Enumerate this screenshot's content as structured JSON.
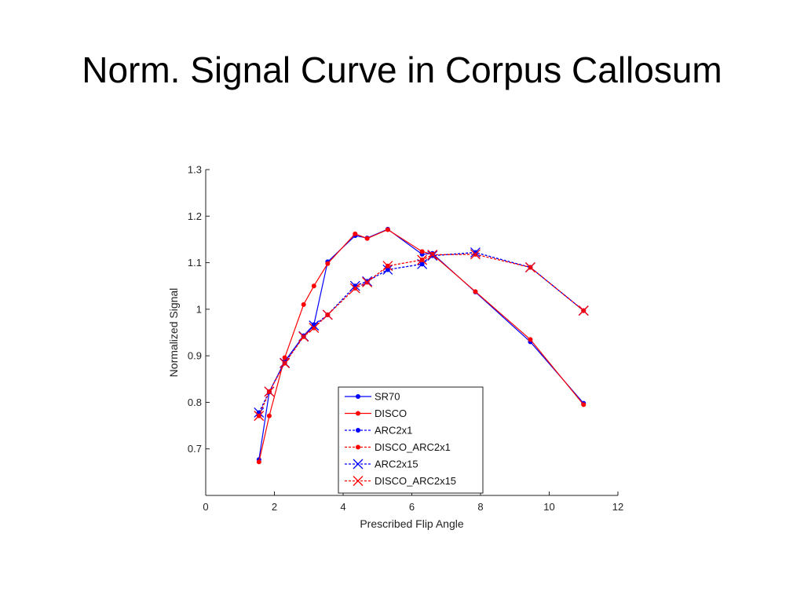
{
  "slide": {
    "title": "Norm. Signal Curve in Corpus Callosum"
  },
  "chart_data": {
    "type": "line",
    "title": "",
    "xlabel": "Prescribed Flip Angle",
    "ylabel": "Normalized Signal",
    "xlim": [
      0,
      12
    ],
    "ylim": [
      0.6,
      1.3
    ],
    "xticks": [
      0,
      2,
      4,
      6,
      8,
      10,
      12
    ],
    "yticks": [
      0.7,
      0.8,
      0.9,
      1,
      1.1,
      1.2,
      1.3
    ],
    "grid": false,
    "legend_position": "bottom-center",
    "series": [
      {
        "name": "SR70",
        "color": "#0000ff",
        "linestyle": "solid",
        "marker": "dot",
        "x": [
          1.55,
          1.85,
          2.3,
          2.85,
          3.15,
          3.55,
          4.35,
          4.7,
          5.3,
          6.3,
          6.6,
          7.85,
          9.45,
          11.0
        ],
        "y": [
          0.677,
          0.822,
          0.888,
          0.943,
          0.967,
          1.102,
          1.158,
          1.153,
          1.172,
          1.118,
          1.12,
          1.037,
          0.93,
          0.798
        ]
      },
      {
        "name": "DISCO",
        "color": "#ff0000",
        "linestyle": "solid",
        "marker": "dot",
        "x": [
          1.55,
          1.85,
          2.3,
          2.85,
          3.15,
          3.55,
          4.35,
          4.7,
          5.3,
          6.3,
          6.6,
          7.85,
          9.45,
          11.0
        ],
        "y": [
          0.672,
          0.771,
          0.896,
          1.01,
          1.05,
          1.098,
          1.162,
          1.152,
          1.171,
          1.124,
          1.118,
          1.038,
          0.935,
          0.795
        ]
      },
      {
        "name": "ARC2x1",
        "color": "#0000ff",
        "linestyle": "dashed",
        "marker": "dot",
        "x": [
          1.55,
          1.85,
          2.3,
          2.85,
          3.15,
          3.55,
          4.35,
          4.7,
          5.3,
          6.3,
          6.6,
          7.85,
          9.45,
          11.0
        ],
        "y": [
          0.778,
          0.823,
          0.885,
          0.942,
          0.965,
          0.988,
          1.05,
          1.06,
          1.085,
          1.097,
          1.115,
          1.122,
          1.09,
          0.997
        ]
      },
      {
        "name": "DISCO_ARC2x1",
        "color": "#ff0000",
        "linestyle": "dashed",
        "marker": "dot",
        "x": [
          1.55,
          1.85,
          2.3,
          2.85,
          3.15,
          3.55,
          4.35,
          4.7,
          5.3,
          6.3,
          6.6,
          7.85,
          9.45,
          11.0
        ],
        "y": [
          0.771,
          0.823,
          0.884,
          0.941,
          0.96,
          0.988,
          1.045,
          1.058,
          1.093,
          1.106,
          1.117,
          1.118,
          1.09,
          0.997
        ]
      },
      {
        "name": "ARC2x15",
        "color": "#0000ff",
        "linestyle": "dashed",
        "marker": "x",
        "x": [
          1.55,
          1.85,
          2.3,
          2.85,
          3.15,
          3.55,
          4.35,
          4.7,
          5.3,
          6.3,
          6.6,
          7.85,
          9.45,
          11.0
        ],
        "y": [
          0.778,
          0.823,
          0.885,
          0.942,
          0.965,
          0.988,
          1.05,
          1.06,
          1.085,
          1.097,
          1.115,
          1.122,
          1.09,
          0.997
        ]
      },
      {
        "name": "DISCO_ARC2x15",
        "color": "#ff0000",
        "linestyle": "dashed",
        "marker": "x",
        "x": [
          1.55,
          1.85,
          2.3,
          2.85,
          3.15,
          3.55,
          4.35,
          4.7,
          5.3,
          6.3,
          6.6,
          7.85,
          9.45,
          11.0
        ],
        "y": [
          0.771,
          0.823,
          0.884,
          0.941,
          0.96,
          0.988,
          1.045,
          1.058,
          1.093,
          1.106,
          1.117,
          1.118,
          1.09,
          0.997
        ]
      }
    ]
  }
}
